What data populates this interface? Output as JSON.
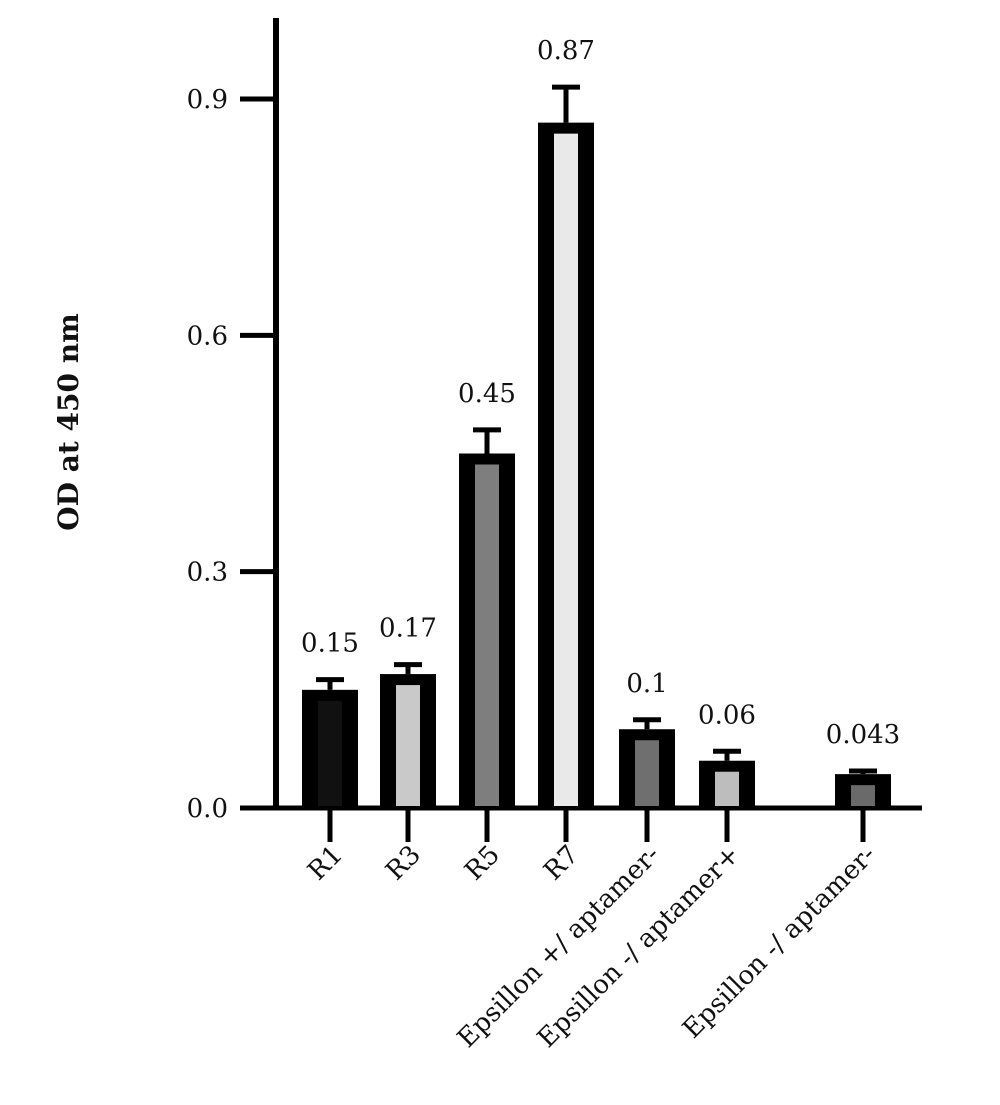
{
  "chart_data": {
    "type": "bar",
    "title": "",
    "xlabel": "",
    "ylabel": "OD at 450 nm",
    "ylim": [
      0,
      1.0
    ],
    "yticks": [
      0.0,
      0.3,
      0.6,
      0.9
    ],
    "ytick_labels": [
      "0.0",
      "0.3",
      "0.6",
      "0.9"
    ],
    "grid": false,
    "categories": [
      "R1",
      "R3",
      "R5",
      "R7",
      "Epsillon +/ aptamer-",
      "Epsillon -/ aptamer+",
      "Epsillon -/ aptamer-"
    ],
    "values": [
      0.15,
      0.17,
      0.45,
      0.87,
      0.1,
      0.06,
      0.043
    ],
    "value_labels": [
      "0.15",
      "0.17",
      "0.45",
      "0.87",
      "0.1",
      "0.06",
      "0.043"
    ],
    "errors": [
      0.013,
      0.012,
      0.03,
      0.045,
      0.012,
      0.012,
      0.004
    ],
    "bar_fills": [
      "#111111",
      "#c9c9c9",
      "#7e7e7e",
      "#e9e9e9",
      "#6f6f6f",
      "#bdbdbd",
      "#6a6a6a"
    ],
    "bar_outline_color": "#000000"
  }
}
